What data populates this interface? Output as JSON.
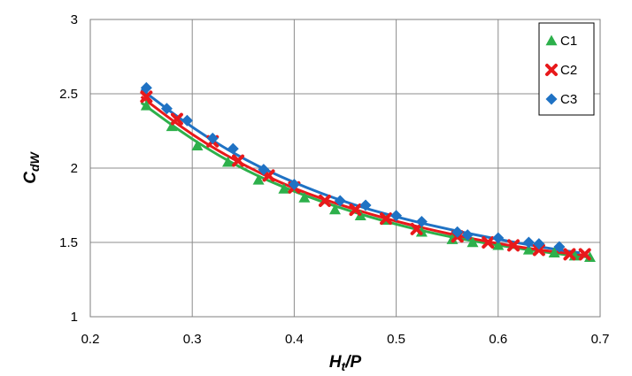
{
  "chart_data": {
    "type": "scatter",
    "xlabel": {
      "main": "H",
      "sub": "t",
      "rest": "/P"
    },
    "ylabel": {
      "main": "C",
      "sub": "dW",
      "rest": ""
    },
    "xlim": [
      0.2,
      0.7
    ],
    "ylim": [
      1,
      3
    ],
    "xticks": [
      "0.2",
      "0.3",
      "0.4",
      "0.5",
      "0.6",
      "0.7"
    ],
    "yticks": [
      "1",
      "1.5",
      "2",
      "2.5",
      "3"
    ],
    "grid": true,
    "legend_position": "top-right",
    "series": [
      {
        "name": "C1",
        "marker": "triangle",
        "color": "#2db04b",
        "x": [
          0.255,
          0.28,
          0.305,
          0.335,
          0.365,
          0.39,
          0.41,
          0.44,
          0.465,
          0.49,
          0.525,
          0.555,
          0.575,
          0.6,
          0.63,
          0.655,
          0.675,
          0.69
        ],
        "y": [
          2.42,
          2.28,
          2.15,
          2.04,
          1.92,
          1.86,
          1.8,
          1.72,
          1.68,
          1.65,
          1.57,
          1.52,
          1.5,
          1.48,
          1.45,
          1.43,
          1.41,
          1.4
        ],
        "fit": [
          [
            0.25,
            2.44
          ],
          [
            0.3,
            2.19
          ],
          [
            0.35,
            1.99
          ],
          [
            0.4,
            1.84
          ],
          [
            0.45,
            1.72
          ],
          [
            0.5,
            1.62
          ],
          [
            0.55,
            1.54
          ],
          [
            0.6,
            1.48
          ],
          [
            0.65,
            1.43
          ],
          [
            0.69,
            1.4
          ]
        ]
      },
      {
        "name": "C2",
        "marker": "x",
        "color": "#e8191b",
        "x": [
          0.255,
          0.285,
          0.32,
          0.345,
          0.375,
          0.4,
          0.43,
          0.46,
          0.49,
          0.52,
          0.56,
          0.59,
          0.615,
          0.64,
          0.67,
          0.685
        ],
        "y": [
          2.48,
          2.33,
          2.18,
          2.05,
          1.95,
          1.87,
          1.78,
          1.72,
          1.66,
          1.59,
          1.54,
          1.5,
          1.48,
          1.45,
          1.42,
          1.42
        ],
        "fit": [
          [
            0.25,
            2.48
          ],
          [
            0.3,
            2.22
          ],
          [
            0.35,
            2.02
          ],
          [
            0.4,
            1.86
          ],
          [
            0.45,
            1.74
          ],
          [
            0.5,
            1.64
          ],
          [
            0.55,
            1.56
          ],
          [
            0.6,
            1.49
          ],
          [
            0.65,
            1.44
          ],
          [
            0.69,
            1.41
          ]
        ]
      },
      {
        "name": "C3",
        "marker": "diamond",
        "color": "#1f72c4",
        "x": [
          0.255,
          0.275,
          0.295,
          0.32,
          0.34,
          0.37,
          0.4,
          0.445,
          0.47,
          0.5,
          0.525,
          0.56,
          0.57,
          0.6,
          0.63,
          0.64,
          0.66
        ],
        "y": [
          2.54,
          2.4,
          2.32,
          2.2,
          2.13,
          1.99,
          1.89,
          1.78,
          1.75,
          1.68,
          1.64,
          1.57,
          1.55,
          1.53,
          1.5,
          1.49,
          1.47
        ],
        "fit": [
          [
            0.25,
            2.53
          ],
          [
            0.3,
            2.27
          ],
          [
            0.35,
            2.06
          ],
          [
            0.4,
            1.9
          ],
          [
            0.45,
            1.77
          ],
          [
            0.5,
            1.67
          ],
          [
            0.55,
            1.59
          ],
          [
            0.6,
            1.52
          ],
          [
            0.65,
            1.46
          ],
          [
            0.68,
            1.43
          ]
        ]
      }
    ]
  }
}
